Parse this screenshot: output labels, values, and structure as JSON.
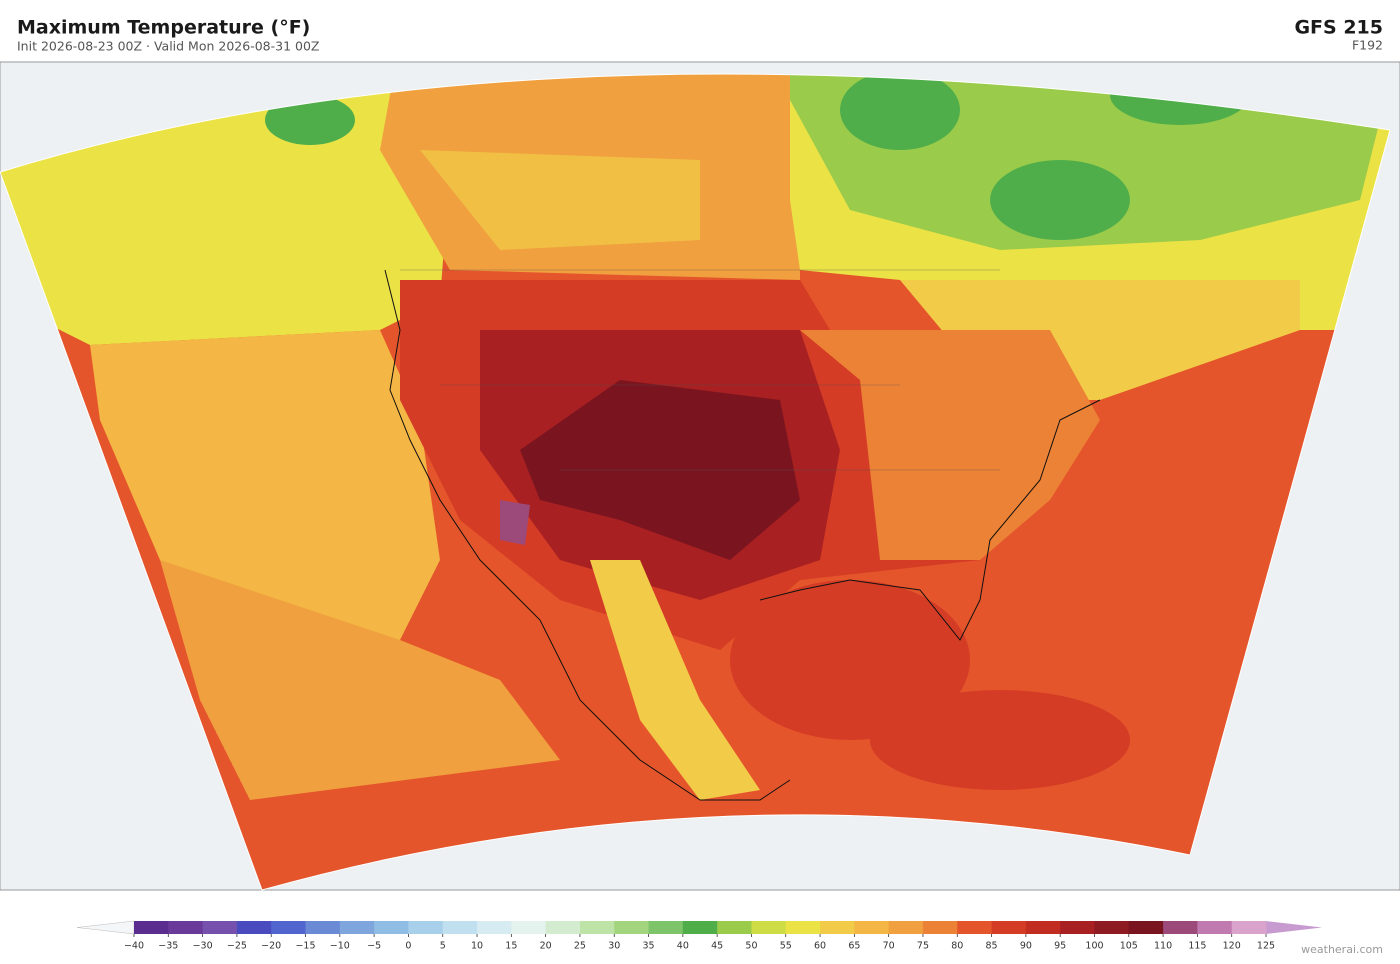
{
  "header": {
    "title": "Maximum Temperature  (°F)",
    "subtitle": "Init 2026-08-23 00Z  ·  Valid Mon 2026-08-31 00Z",
    "model": "GFS  215",
    "forecast_hour": "F192"
  },
  "colorbar": {
    "ticks": [
      {
        "value": -40,
        "label": "−40"
      },
      {
        "value": -35,
        "label": "−35"
      },
      {
        "value": -30,
        "label": "−30"
      },
      {
        "value": -25,
        "label": "−25"
      },
      {
        "value": -20,
        "label": "−20"
      },
      {
        "value": -15,
        "label": "−15"
      },
      {
        "value": -10,
        "label": "−10"
      },
      {
        "value": -5,
        "label": "−5"
      },
      0,
      5,
      10,
      15,
      20,
      25,
      30,
      35,
      40,
      45,
      50,
      55,
      60,
      65,
      70,
      75,
      80,
      85,
      90,
      95,
      100,
      105,
      110,
      115,
      120,
      125
    ],
    "colors": [
      "#5b2d8e",
      "#6a3a9a",
      "#7650ad",
      "#4a4bbf",
      "#5165cf",
      "#6a8ad6",
      "#7fa6dc",
      "#90bde3",
      "#a8d0ea",
      "#c0e0ef",
      "#d6ecf2",
      "#e4f3ee",
      "#d3ecd0",
      "#bde3a6",
      "#a3d57f",
      "#7ec46a",
      "#4fae4a",
      "#9acb4a",
      "#cedd45",
      "#ebe246",
      "#f2cc48",
      "#f4b644",
      "#f0a03e",
      "#ec8235",
      "#e5552b",
      "#d43c25",
      "#c22d22",
      "#a82022",
      "#8e1a22",
      "#7a1520",
      "#9c4a7a",
      "#c07ab0",
      "#d9a3cc"
    ],
    "under_color": "#f4f6f8",
    "over_color": "#c79ad0"
  },
  "watermark": "weatherai.com"
}
